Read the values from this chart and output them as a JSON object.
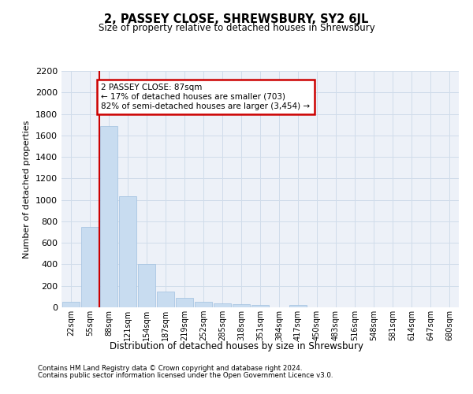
{
  "title": "2, PASSEY CLOSE, SHREWSBURY, SY2 6JL",
  "subtitle": "Size of property relative to detached houses in Shrewsbury",
  "xlabel": "Distribution of detached houses by size in Shrewsbury",
  "ylabel": "Number of detached properties",
  "bar_labels": [
    "22sqm",
    "55sqm",
    "88sqm",
    "121sqm",
    "154sqm",
    "187sqm",
    "219sqm",
    "252sqm",
    "285sqm",
    "318sqm",
    "351sqm",
    "384sqm",
    "417sqm",
    "450sqm",
    "483sqm",
    "516sqm",
    "548sqm",
    "581sqm",
    "614sqm",
    "647sqm",
    "680sqm"
  ],
  "bar_values": [
    55,
    745,
    1690,
    1035,
    405,
    150,
    85,
    50,
    40,
    30,
    20,
    0,
    20,
    0,
    0,
    0,
    0,
    0,
    0,
    0,
    0
  ],
  "bar_color": "#c8dcf0",
  "bar_edge_color": "#a0c0e0",
  "ylim": [
    0,
    2200
  ],
  "yticks": [
    0,
    200,
    400,
    600,
    800,
    1000,
    1200,
    1400,
    1600,
    1800,
    2000,
    2200
  ],
  "vline_bin_index": 2,
  "annotation_text": "2 PASSEY CLOSE: 87sqm\n← 17% of detached houses are smaller (703)\n82% of semi-detached houses are larger (3,454) →",
  "annotation_box_color": "#ffffff",
  "annotation_box_edge": "#cc0000",
  "vline_color": "#cc0000",
  "footer_line1": "Contains HM Land Registry data © Crown copyright and database right 2024.",
  "footer_line2": "Contains public sector information licensed under the Open Government Licence v3.0.",
  "grid_color": "#d0dcea",
  "background_color": "#edf1f8"
}
